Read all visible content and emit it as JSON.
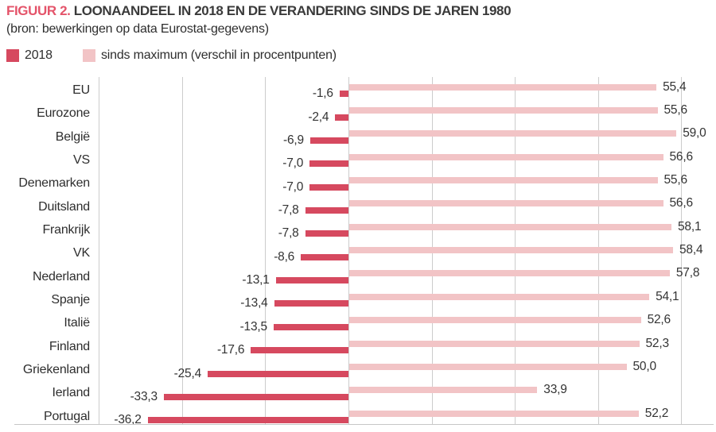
{
  "header": {
    "figure_label": "FIGUUR 2.",
    "title": "LOONAANDEEL IN 2018 EN DE VERANDERING SINDS DE JAREN 1980",
    "source": "(bron: bewerkingen op data Eurostat-gegevens)"
  },
  "legend": {
    "items": [
      {
        "label": "2018",
        "color": "#d6495f"
      },
      {
        "label": "sinds maximum (verschil in procentpunten)",
        "color": "#f2c4c6"
      }
    ]
  },
  "colors": {
    "accent_red": "#e4546a",
    "bar_dark": "#d6495f",
    "bar_light": "#f2c4c6",
    "gridline": "#cccccc",
    "text": "#2e2e2e"
  },
  "chart_data": {
    "type": "bar",
    "orientation": "horizontal",
    "title": "LOONAANDEEL IN 2018 EN DE VERANDERING SINDS DE JAREN 1980",
    "subtitle": "(bron: bewerkingen op data Eurostat-gegevens)",
    "categories": [
      "EU",
      "Eurozone",
      "België",
      "VS",
      "Denemarken",
      "Duitsland",
      "Frankrijk",
      "VK",
      "Nederland",
      "Spanje",
      "Italië",
      "Finland",
      "Griekenland",
      "Ierland",
      "Portugal"
    ],
    "series": [
      {
        "name": "2018",
        "color": "#d6495f",
        "values": [
          -1.6,
          -2.4,
          -6.9,
          -7.0,
          -7.0,
          -7.8,
          -7.8,
          -8.6,
          -13.1,
          -13.4,
          -13.5,
          -17.6,
          -25.4,
          -33.3,
          -36.2
        ],
        "labels": [
          "-1,6",
          "-2,4",
          "-6,9",
          "-7,0",
          "-7,0",
          "-7,8",
          "-7,8",
          "-8,6",
          "-13,1",
          "-13,4",
          "-13,5",
          "-17,6",
          "-25,4",
          "-33,3",
          "-36,2"
        ]
      },
      {
        "name": "sinds maximum (verschil in procentpunten)",
        "color": "#f2c4c6",
        "values": [
          55.4,
          55.6,
          59.0,
          56.6,
          55.6,
          56.6,
          58.1,
          58.4,
          57.8,
          54.1,
          52.6,
          52.3,
          50.0,
          33.9,
          52.2
        ],
        "labels": [
          "55,4",
          "55,6",
          "59,0",
          "56,6",
          "55,6",
          "56,6",
          "58,1",
          "58,4",
          "57,8",
          "54,1",
          "52,6",
          "52,3",
          "50,0",
          "33,9",
          "52,2"
        ]
      }
    ],
    "xlim": [
      -45,
      65
    ],
    "gridline_values": [
      -45,
      -30,
      -15,
      0,
      15,
      30,
      45,
      60
    ],
    "grid": true,
    "axis_tick_labels_visible": false,
    "value_labels": "at-bar-ends",
    "legend_position": "top-left"
  }
}
